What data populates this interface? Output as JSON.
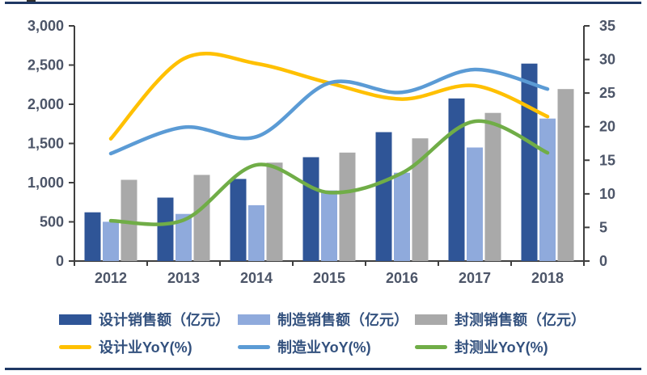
{
  "palette": {
    "rule": "#1F3864",
    "axis_line": "#3F3F3F",
    "tick_text": "#4C5568",
    "legend_text": "#33517E",
    "background": "#FFFFFF"
  },
  "chart_data": {
    "type": "combo (clustered bar + smooth line)",
    "categories": [
      "2012",
      "2013",
      "2014",
      "2015",
      "2016",
      "2017",
      "2018"
    ],
    "bar_series": [
      {
        "key": "design-sales",
        "name": "设计销售额（亿元）",
        "color": "#2F5597",
        "axis": "left",
        "values": [
          622,
          809,
          1047,
          1325,
          1644,
          2074,
          2519
        ]
      },
      {
        "key": "mfg-sales",
        "name": "制造销售额（亿元）",
        "color": "#8FAADC",
        "axis": "left",
        "values": [
          501,
          601,
          712,
          901,
          1127,
          1448,
          1818
        ]
      },
      {
        "key": "pkg-sales",
        "name": "封测销售额（亿元）",
        "color": "#A9A9A9",
        "axis": "left",
        "values": [
          1036,
          1099,
          1256,
          1384,
          1565,
          1890,
          2194
        ]
      }
    ],
    "line_series": [
      {
        "key": "design-yoy",
        "name": "设计业YoY(%)",
        "color": "#FFC000",
        "axis": "right",
        "smooth": true,
        "values": [
          18.2,
          30.1,
          29.4,
          26.5,
          24.1,
          26.1,
          21.5
        ]
      },
      {
        "key": "mfg-yoy",
        "name": "制造业YoY(%)",
        "color": "#5B9BD5",
        "axis": "right",
        "smooth": true,
        "values": [
          16.0,
          19.9,
          18.5,
          26.5,
          25.1,
          28.5,
          25.6
        ]
      },
      {
        "key": "pkg-yoy",
        "name": "封测业YoY(%)",
        "color": "#70AD47",
        "axis": "right",
        "smooth": true,
        "values": [
          6.0,
          6.1,
          14.3,
          10.2,
          13.1,
          20.8,
          16.1
        ]
      }
    ],
    "left_axis": {
      "min": 0,
      "max": 3000,
      "step": 500,
      "tick_labels": [
        "0",
        "500",
        "1,000",
        "1,500",
        "2,000",
        "2,500",
        "3,000"
      ]
    },
    "right_axis": {
      "min": 0,
      "max": 35,
      "step": 5,
      "tick_labels": [
        "0",
        "5",
        "10",
        "15",
        "20",
        "25",
        "30",
        "35"
      ]
    },
    "grid": false,
    "legend_position": "bottom"
  }
}
